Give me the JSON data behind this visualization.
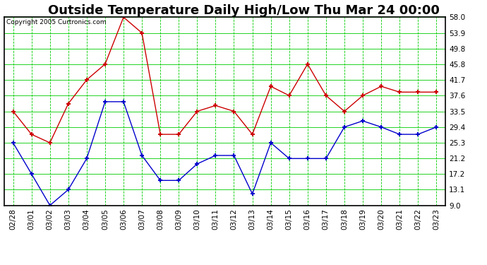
{
  "title": "Outside Temperature Daily High/Low Thu Mar 24 00:00",
  "copyright_text": "Copyright 2005 Curtronics.com",
  "x_labels": [
    "02/28",
    "03/01",
    "03/02",
    "03/03",
    "03/04",
    "03/05",
    "03/06",
    "03/07",
    "03/08",
    "03/09",
    "03/10",
    "03/11",
    "03/12",
    "03/13",
    "03/14",
    "03/15",
    "03/16",
    "03/17",
    "03/18",
    "03/19",
    "03/20",
    "03/21",
    "03/22",
    "03/23"
  ],
  "high_values": [
    33.5,
    27.5,
    25.3,
    35.5,
    41.7,
    45.8,
    58.0,
    53.9,
    27.5,
    27.5,
    33.5,
    35.0,
    33.5,
    27.5,
    40.0,
    37.6,
    45.8,
    37.6,
    33.5,
    37.6,
    40.0,
    38.5,
    38.5,
    38.5
  ],
  "low_values": [
    25.3,
    17.2,
    9.0,
    13.1,
    21.2,
    36.0,
    36.0,
    22.0,
    15.5,
    15.5,
    19.8,
    22.0,
    22.0,
    12.0,
    25.3,
    21.2,
    21.2,
    21.2,
    29.4,
    31.0,
    29.4,
    27.5,
    27.5,
    29.4
  ],
  "high_color": "#cc0000",
  "low_color": "#0000cc",
  "bg_color": "#ffffff",
  "plot_bg_color": "#ffffff",
  "grid_color": "#00cc00",
  "grid_major_color": "#008800",
  "y_ticks": [
    9.0,
    13.1,
    17.2,
    21.2,
    25.3,
    29.4,
    33.5,
    37.6,
    41.7,
    45.8,
    49.8,
    53.9,
    58.0
  ],
  "ylim": [
    9.0,
    58.0
  ],
  "title_fontsize": 13,
  "axis_fontsize": 7.5,
  "marker_size": 3,
  "border_color": "#000000"
}
